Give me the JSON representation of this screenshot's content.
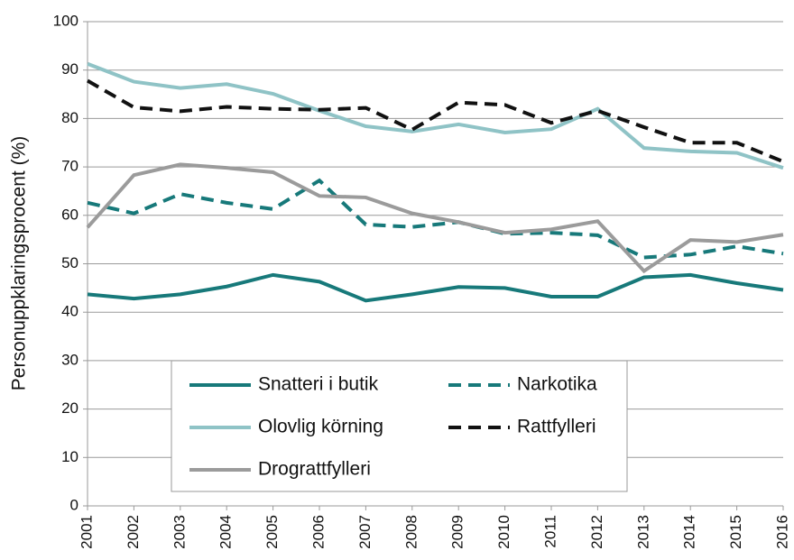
{
  "chart_data": {
    "type": "line",
    "y_label": "Personuppklaringsprocent (%)",
    "x": [
      2001,
      2002,
      2003,
      2004,
      2005,
      2006,
      2007,
      2008,
      2009,
      2010,
      2011,
      2012,
      2013,
      2014,
      2015,
      2016
    ],
    "xlim": [
      2001,
      2016
    ],
    "ylim": [
      0,
      100
    ],
    "yticks": [
      0,
      10,
      20,
      30,
      40,
      50,
      60,
      70,
      80,
      90,
      100
    ],
    "grid": true,
    "series": [
      {
        "name": "Snatteri i butik",
        "color": "#17797a",
        "dash": false,
        "values": [
          43.7,
          42.8,
          43.7,
          45.3,
          47.7,
          46.3,
          42.4,
          43.7,
          45.2,
          45.0,
          43.2,
          43.2,
          47.2,
          47.7,
          46.0,
          44.6
        ]
      },
      {
        "name": "Narkotika",
        "color": "#17797a",
        "dash": true,
        "values": [
          62.6,
          60.4,
          64.4,
          62.6,
          61.3,
          67.2,
          58.1,
          57.6,
          58.6,
          56.2,
          56.4,
          55.9,
          51.3,
          51.9,
          53.6,
          52.1
        ]
      },
      {
        "name": "Olovlig körning",
        "color": "#8fc3c6",
        "dash": false,
        "values": [
          91.3,
          87.6,
          86.3,
          87.1,
          85.1,
          81.6,
          78.4,
          77.3,
          78.8,
          77.1,
          77.8,
          82.0,
          73.9,
          73.2,
          72.9,
          69.8
        ]
      },
      {
        "name": "Rattfylleri",
        "color": "#111111",
        "dash": true,
        "values": [
          87.8,
          82.3,
          81.5,
          82.4,
          82.0,
          81.8,
          82.2,
          77.7,
          83.3,
          82.8,
          79.1,
          81.6,
          78.2,
          75.0,
          75.0,
          71.1
        ]
      },
      {
        "name": "Drograttfylleri",
        "color": "#9b9b9b",
        "dash": false,
        "values": [
          57.5,
          68.3,
          70.5,
          69.8,
          68.9,
          64.0,
          63.7,
          60.4,
          58.6,
          56.4,
          57.1,
          58.8,
          48.5,
          54.9,
          54.5,
          56.0
        ]
      }
    ]
  }
}
